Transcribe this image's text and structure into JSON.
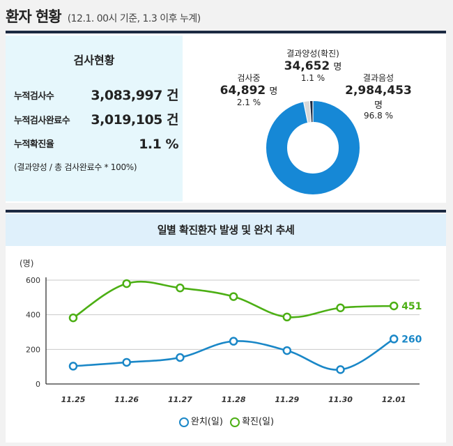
{
  "header": {
    "title": "환자 현황",
    "subtitle": "(12.1. 00시 기준, 1.3 이후 누계)"
  },
  "stats": {
    "title": "검사현황",
    "rows": [
      {
        "label": "누적검사수",
        "value": "3,083,997 건"
      },
      {
        "label": "누적검사완료수",
        "value": "3,019,105 건"
      },
      {
        "label": "누적확진율",
        "value": "1.1 %"
      }
    ],
    "note": "(결과양성 / 총 검사완료수 * 100%)"
  },
  "donut": {
    "segments": [
      {
        "name": "결과음성",
        "value": "2,984,453",
        "unit": "명",
        "percent": "96.8 %",
        "share": 96.8,
        "color": "#1688d6"
      },
      {
        "name": "검사중",
        "value": "64,892",
        "unit": "명",
        "percent": "2.1 %",
        "share": 2.1,
        "color": "#d8d8d8"
      },
      {
        "name": "결과양성(확진)",
        "value": "34,652",
        "unit": "명",
        "percent": "1.1 %",
        "share": 1.1,
        "color": "#1c2a42"
      }
    ]
  },
  "chart_title": "일별 확진환자 발생 및 완치 추세",
  "chart_data": {
    "type": "line",
    "title": "일별 확진환자 발생 및 완치 추세",
    "ylabel": "(명)",
    "categories": [
      "11.25",
      "11.26",
      "11.27",
      "11.28",
      "11.29",
      "11.30",
      "12.01"
    ],
    "ylim": [
      0,
      600
    ],
    "yticks": [
      "0",
      "200",
      "400",
      "600"
    ],
    "grid": true,
    "series": [
      {
        "name": "완치(일)",
        "color": "#1a87c7",
        "values": [
          103,
          125,
          153,
          247,
          193,
          83,
          260
        ],
        "end_label": "260"
      },
      {
        "name": "확진(일)",
        "color": "#4caf14",
        "values": [
          382,
          580,
          555,
          505,
          387,
          440,
          451
        ],
        "end_label": "451"
      }
    ],
    "legend": "bottom"
  }
}
